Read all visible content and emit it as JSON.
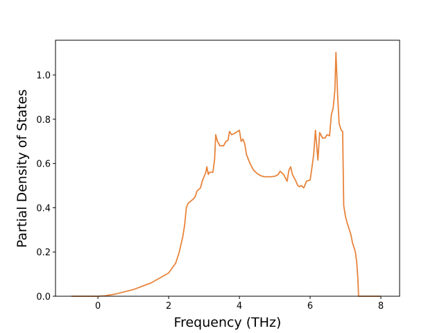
{
  "chart_data": {
    "type": "line",
    "x_label": "Frequency (THz)",
    "y_label": "Partial Density of States",
    "xlim": [
      -1.2,
      8.53
    ],
    "ylim": [
      0,
      1.157
    ],
    "xticks": [
      0,
      2,
      4,
      6,
      8
    ],
    "yticks": [
      {
        "value": 0,
        "label": "0.0"
      },
      {
        "value": 0.2,
        "label": "0.2"
      },
      {
        "value": 0.4,
        "label": "0.4"
      },
      {
        "value": 0.6,
        "label": "0.6"
      },
      {
        "value": 0.8,
        "label": "0.8"
      },
      {
        "value": 1,
        "label": "1.0"
      }
    ],
    "x": [
      -0.75,
      0,
      0.2,
      0.5,
      1.0,
      1.5,
      2.0,
      2.2,
      2.3,
      2.4,
      2.45,
      2.5,
      2.55,
      2.7,
      2.75,
      2.8,
      2.9,
      2.95,
      3.0,
      3.05,
      3.08,
      3.12,
      3.15,
      3.2,
      3.25,
      3.3,
      3.33,
      3.38,
      3.45,
      3.55,
      3.62,
      3.68,
      3.72,
      3.78,
      3.85,
      3.95,
      4.0,
      4.05,
      4.1,
      4.15,
      4.2,
      4.3,
      4.4,
      4.5,
      4.6,
      4.7,
      4.9,
      5.0,
      5.1,
      5.15,
      5.25,
      5.35,
      5.4,
      5.45,
      5.5,
      5.6,
      5.65,
      5.7,
      5.75,
      5.82,
      5.9,
      6.0,
      6.05,
      6.1,
      6.15,
      6.22,
      6.27,
      6.35,
      6.42,
      6.48,
      6.55,
      6.6,
      6.65,
      6.7,
      6.73,
      6.78,
      6.82,
      6.88,
      6.92,
      6.95,
      7.0,
      7.05,
      7.15,
      7.2,
      7.28,
      7.32,
      7.35,
      7.37,
      7.5,
      8.0
    ],
    "series": [
      {
        "color": "#e8833a",
        "values": [
          0,
          0,
          0.002,
          0.01,
          0.03,
          0.06,
          0.105,
          0.15,
          0.2,
          0.27,
          0.32,
          0.4,
          0.42,
          0.44,
          0.45,
          0.475,
          0.49,
          0.52,
          0.54,
          0.56,
          0.585,
          0.55,
          0.56,
          0.56,
          0.56,
          0.62,
          0.73,
          0.7,
          0.68,
          0.68,
          0.7,
          0.705,
          0.745,
          0.73,
          0.735,
          0.745,
          0.75,
          0.7,
          0.71,
          0.69,
          0.64,
          0.6,
          0.57,
          0.555,
          0.545,
          0.54,
          0.54,
          0.542,
          0.55,
          0.565,
          0.55,
          0.52,
          0.57,
          0.585,
          0.55,
          0.52,
          0.5,
          0.495,
          0.5,
          0.49,
          0.52,
          0.525,
          0.58,
          0.64,
          0.75,
          0.615,
          0.74,
          0.715,
          0.715,
          0.73,
          0.725,
          0.82,
          0.85,
          0.93,
          1.102,
          0.9,
          0.78,
          0.75,
          0.745,
          0.41,
          0.36,
          0.33,
          0.28,
          0.24,
          0.2,
          0.15,
          0.08,
          0,
          0,
          0
        ]
      }
    ]
  }
}
